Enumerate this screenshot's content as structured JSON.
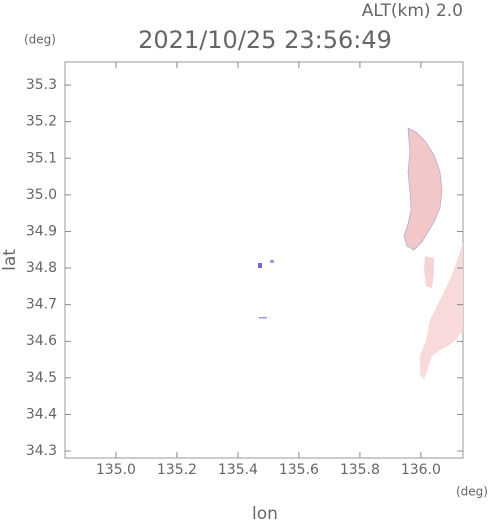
{
  "chart_data": {
    "type": "map",
    "title": "2021/10/25 23:56:49",
    "annotation": "ALT(km) 2.0",
    "y_unit": "(deg)",
    "x_unit": "(deg)",
    "xlabel": "lon",
    "ylabel": "lat",
    "xlim": [
      134.833,
      136.138
    ],
    "ylim": [
      34.281,
      35.363
    ],
    "xticks": [
      {
        "value": 135,
        "label": "135.0"
      },
      135.2,
      135.4,
      135.6,
      135.8,
      {
        "value": 136,
        "label": "136.0"
      }
    ],
    "yticks": [
      34.3,
      34.4,
      34.5,
      34.6,
      34.7,
      34.8,
      34.9,
      {
        "value": 35,
        "label": "35.0"
      },
      35.1,
      35.2,
      35.3
    ]
  }
}
